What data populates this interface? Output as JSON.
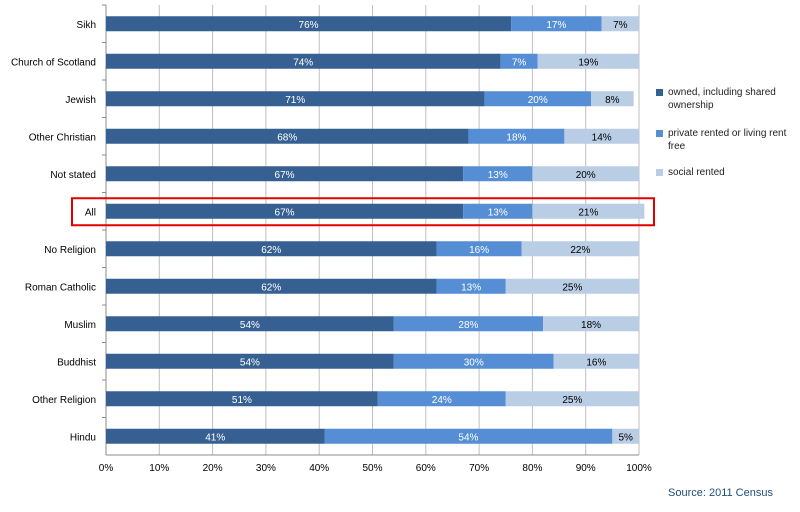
{
  "chart_data": {
    "type": "bar",
    "orientation": "horizontal",
    "stacked": true,
    "percent_stacked": true,
    "categories": [
      "Sikh",
      "Church of Scotland",
      "Jewish",
      "Other Christian",
      "Not stated",
      "All",
      "No Religion",
      "Roman Catholic",
      "Muslim",
      "Buddhist",
      "Other Religion",
      "Hindu"
    ],
    "series": [
      {
        "name": "owned, including shared ownership",
        "color": "#376092",
        "values": [
          76,
          74,
          71,
          68,
          67,
          67,
          62,
          62,
          54,
          54,
          51,
          41
        ],
        "labels": [
          "76%",
          "74%",
          "71%",
          "68%",
          "67%",
          "67%",
          "62%",
          "62%",
          "54%",
          "54%",
          "51%",
          "41%"
        ]
      },
      {
        "name": "private rented or living rent free",
        "color": "#558ed5",
        "values": [
          17,
          7,
          20,
          18,
          13,
          13,
          16,
          13,
          28,
          30,
          24,
          54
        ],
        "labels": [
          "17%",
          "7%",
          "20%",
          "18%",
          "13%",
          "13%",
          "16%",
          "13%",
          "28%",
          "30%",
          "24%",
          "54%"
        ]
      },
      {
        "name": "social rented",
        "color": "#b9cde5",
        "values": [
          7,
          19,
          8,
          14,
          20,
          21,
          22,
          25,
          18,
          16,
          25,
          5
        ],
        "labels": [
          "7%",
          "19%",
          "8%",
          "14%",
          "20%",
          "21%",
          "22%",
          "25%",
          "18%",
          "16%",
          "25%",
          "5%"
        ]
      }
    ],
    "x_ticks": [
      "0%",
      "10%",
      "20%",
      "30%",
      "40%",
      "50%",
      "60%",
      "70%",
      "80%",
      "90%",
      "100%"
    ],
    "xlim": [
      0,
      100
    ],
    "grid": "vertical",
    "legend_position": "right",
    "highlighted_category": "All",
    "highlight_color": "#e00000"
  },
  "source_text": "Source: 2011 Census"
}
